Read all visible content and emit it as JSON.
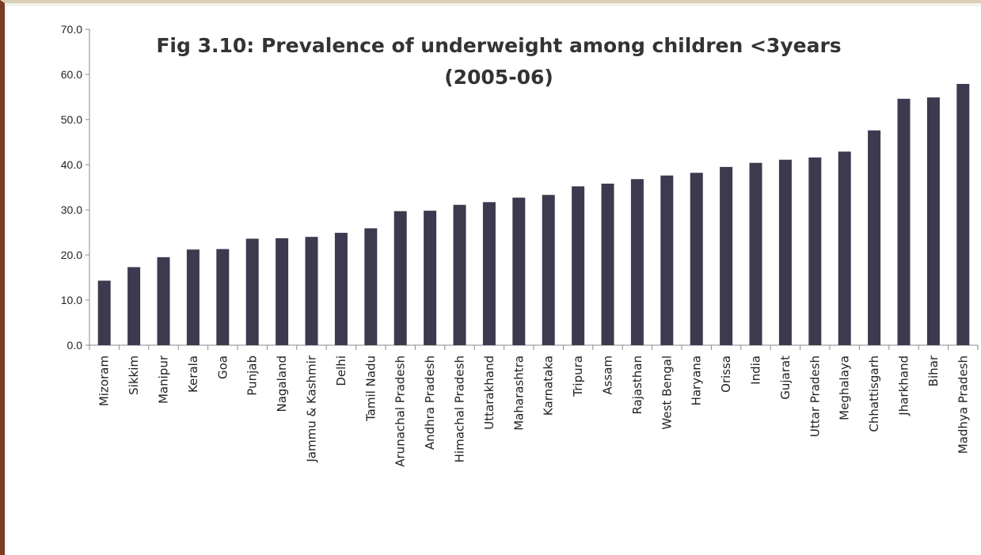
{
  "chart_data": {
    "type": "bar",
    "title_line1": "Fig 3.10: Prevalence of underweight among children <3years",
    "title_line2": "(2005-06)",
    "xlabel": "",
    "ylabel": "",
    "ylim": [
      0,
      70
    ],
    "yticks": [
      "0.0",
      "10.0",
      "20.0",
      "30.0",
      "40.0",
      "50.0",
      "60.0",
      "70.0"
    ],
    "grid": false,
    "bar_color": "#3b3a4e",
    "categories": [
      "Mizoram",
      "Sikkim",
      "Manipur",
      "Kerala",
      "Goa",
      "Punjab",
      "Nagaland",
      "Jammu & Kashmir",
      "Delhi",
      "Tamil Nadu",
      "Arunachal Pradesh",
      "Andhra Pradesh",
      "Himachal Pradesh",
      "Uttarakhand",
      "Maharashtra",
      "Karnataka",
      "Tripura",
      "Assam",
      "Rajasthan",
      "West Bengal",
      "Haryana",
      "Orissa",
      "India",
      "Gujarat",
      "Uttar Pradesh",
      "Meghalaya",
      "Chhattisgarh",
      "Jharkhand",
      "Bihar",
      "Madhya Pradesh"
    ],
    "values": [
      14.3,
      17.3,
      19.5,
      21.2,
      21.3,
      23.6,
      23.7,
      24.0,
      24.9,
      25.9,
      29.7,
      29.8,
      31.1,
      31.7,
      32.7,
      33.3,
      35.2,
      35.8,
      36.8,
      37.6,
      38.2,
      39.5,
      40.4,
      41.1,
      41.6,
      42.9,
      47.6,
      54.6,
      54.9,
      57.9
    ]
  }
}
